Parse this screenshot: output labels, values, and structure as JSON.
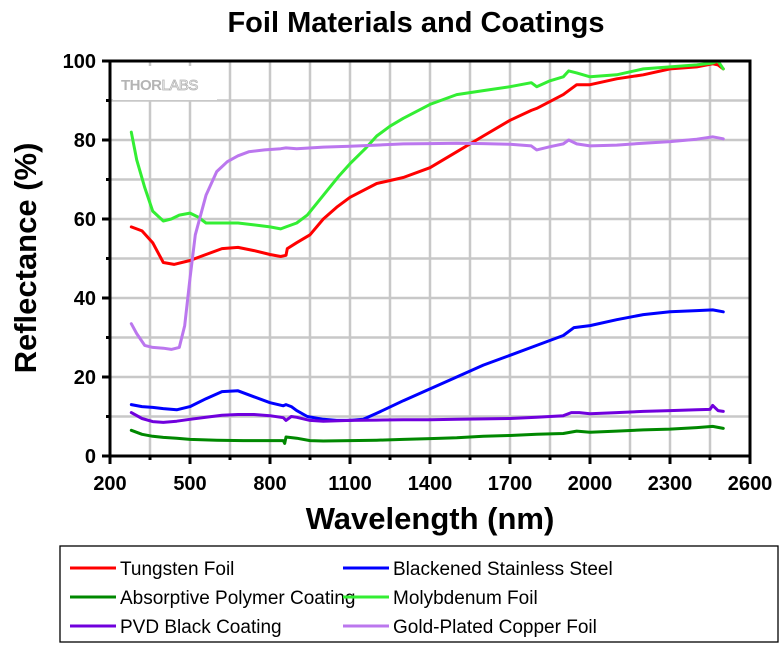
{
  "chart_data": {
    "type": "line",
    "title": "Foil Materials and Coatings",
    "xlabel": "Wavelength (nm)",
    "ylabel": "Reflectance (%)",
    "xlim": [
      200,
      2600
    ],
    "ylim": [
      0,
      100
    ],
    "xticks": [
      200,
      500,
      800,
      1100,
      1400,
      1700,
      2000,
      2300,
      2600
    ],
    "xtick_labels": [
      "200",
      "500",
      "800",
      "1100",
      "1400",
      "1700",
      "2000",
      "2300",
      "2600"
    ],
    "yticks": [
      0,
      20,
      40,
      60,
      80,
      100
    ],
    "ytick_labels": [
      "0",
      "20",
      "40",
      "60",
      "80",
      "100"
    ],
    "grid": true,
    "watermark": {
      "bold": "THOR",
      "light": "LABS"
    },
    "legend_position": "bottom",
    "series": [
      {
        "name": "Tungsten Foil",
        "color": "#ff0000",
        "x": [
          280,
          320,
          360,
          400,
          440,
          500,
          560,
          620,
          680,
          740,
          800,
          840,
          860,
          865,
          900,
          950,
          1000,
          1050,
          1100,
          1200,
          1300,
          1400,
          1500,
          1600,
          1700,
          1780,
          1800,
          1900,
          1950,
          2000,
          2100,
          2200,
          2300,
          2400,
          2460,
          2480,
          2500
        ],
        "y": [
          58,
          57,
          54,
          49,
          48.5,
          49.5,
          51,
          52.5,
          52.8,
          52,
          51,
          50.5,
          50.8,
          52.5,
          54,
          56,
          60,
          63,
          65.5,
          69,
          70.5,
          73,
          77,
          81,
          85,
          87.5,
          88,
          91.5,
          94,
          94,
          95.5,
          96.5,
          98,
          98.5,
          99.3,
          99,
          98
        ]
      },
      {
        "name": "Blackened Stainless Steel",
        "color": "#0000ff",
        "x": [
          280,
          320,
          360,
          400,
          450,
          500,
          560,
          620,
          680,
          740,
          800,
          850,
          860,
          880,
          900,
          940,
          1000,
          1050,
          1100,
          1150,
          1200,
          1300,
          1400,
          1500,
          1600,
          1700,
          1800,
          1900,
          1940,
          2000,
          2100,
          2200,
          2300,
          2400,
          2460,
          2500
        ],
        "y": [
          13,
          12.5,
          12.3,
          12,
          11.7,
          12.5,
          14.5,
          16.3,
          16.5,
          15,
          13.5,
          12.7,
          13,
          12.5,
          11.5,
          10,
          9.3,
          9,
          9,
          9.3,
          10.8,
          14,
          17,
          20,
          23,
          25.5,
          28,
          30.5,
          32.5,
          33,
          34.5,
          35.8,
          36.5,
          36.8,
          37,
          36.5
        ]
      },
      {
        "name": "Absorptive Polymer Coating",
        "color": "#008800",
        "x": [
          280,
          320,
          360,
          400,
          450,
          500,
          600,
          700,
          800,
          850,
          855,
          860,
          900,
          950,
          1000,
          1100,
          1200,
          1300,
          1400,
          1500,
          1600,
          1700,
          1800,
          1900,
          1950,
          2000,
          2100,
          2200,
          2300,
          2400,
          2460,
          2500
        ],
        "y": [
          6.5,
          5.5,
          5,
          4.7,
          4.5,
          4.2,
          4,
          3.9,
          3.9,
          3.9,
          3.2,
          4.8,
          4.5,
          3.9,
          3.8,
          3.9,
          4,
          4.2,
          4.4,
          4.6,
          5,
          5.2,
          5.5,
          5.7,
          6.3,
          6,
          6.3,
          6.6,
          6.8,
          7.2,
          7.5,
          7
        ]
      },
      {
        "name": "Molybdenum Foil",
        "color": "#33ee33",
        "x": [
          280,
          300,
          330,
          360,
          400,
          430,
          460,
          500,
          530,
          560,
          600,
          680,
          740,
          800,
          840,
          860,
          900,
          940,
          1000,
          1060,
          1100,
          1160,
          1200,
          1250,
          1300,
          1400,
          1500,
          1600,
          1700,
          1780,
          1800,
          1850,
          1900,
          1920,
          1950,
          2000,
          2100,
          2200,
          2300,
          2400,
          2460,
          2480,
          2500
        ],
        "y": [
          82,
          75,
          68,
          62,
          59.5,
          60,
          61,
          61.5,
          60.5,
          59,
          59,
          59,
          58.5,
          58,
          57.5,
          58,
          59,
          61,
          66,
          71,
          74,
          78,
          81,
          83.5,
          85.5,
          89,
          91.5,
          92.5,
          93.5,
          94.5,
          93.5,
          95,
          96,
          97.5,
          97,
          96,
          96.5,
          98,
          98.5,
          99,
          99.5,
          100,
          98
        ]
      },
      {
        "name": "PVD Black Coating",
        "color": "#7000dd",
        "x": [
          280,
          320,
          360,
          400,
          450,
          500,
          560,
          620,
          680,
          740,
          800,
          850,
          860,
          880,
          900,
          950,
          1000,
          1100,
          1200,
          1300,
          1400,
          1500,
          1600,
          1700,
          1800,
          1900,
          1930,
          1960,
          2000,
          2100,
          2200,
          2300,
          2400,
          2450,
          2460,
          2480,
          2500
        ],
        "y": [
          11,
          9.5,
          8.7,
          8.5,
          8.8,
          9.3,
          9.8,
          10.3,
          10.5,
          10.5,
          10.2,
          9.7,
          9,
          10,
          9.8,
          9,
          8.8,
          9,
          9.1,
          9.2,
          9.2,
          9.3,
          9.4,
          9.5,
          9.8,
          10.2,
          11,
          11,
          10.7,
          11,
          11.3,
          11.5,
          11.7,
          11.8,
          12.8,
          11.5,
          11.3
        ]
      },
      {
        "name": "Gold-Plated Copper Foil",
        "color": "#bb77ee",
        "x": [
          280,
          300,
          330,
          360,
          400,
          430,
          460,
          480,
          500,
          520,
          560,
          600,
          640,
          680,
          720,
          780,
          840,
          860,
          900,
          1000,
          1100,
          1200,
          1300,
          1400,
          1500,
          1600,
          1700,
          1780,
          1800,
          1850,
          1900,
          1920,
          1950,
          2000,
          2100,
          2200,
          2300,
          2400,
          2460,
          2500
        ],
        "y": [
          33.5,
          31,
          28,
          27.5,
          27.3,
          27,
          27.5,
          33,
          45,
          56,
          66,
          72,
          74.5,
          76,
          77,
          77.5,
          77.8,
          78,
          77.8,
          78.2,
          78.4,
          78.7,
          79,
          79.1,
          79.2,
          79.1,
          78.9,
          78.5,
          77.5,
          78.3,
          79,
          80,
          79,
          78.5,
          78.7,
          79.2,
          79.6,
          80.2,
          80.8,
          80.3
        ]
      }
    ]
  }
}
